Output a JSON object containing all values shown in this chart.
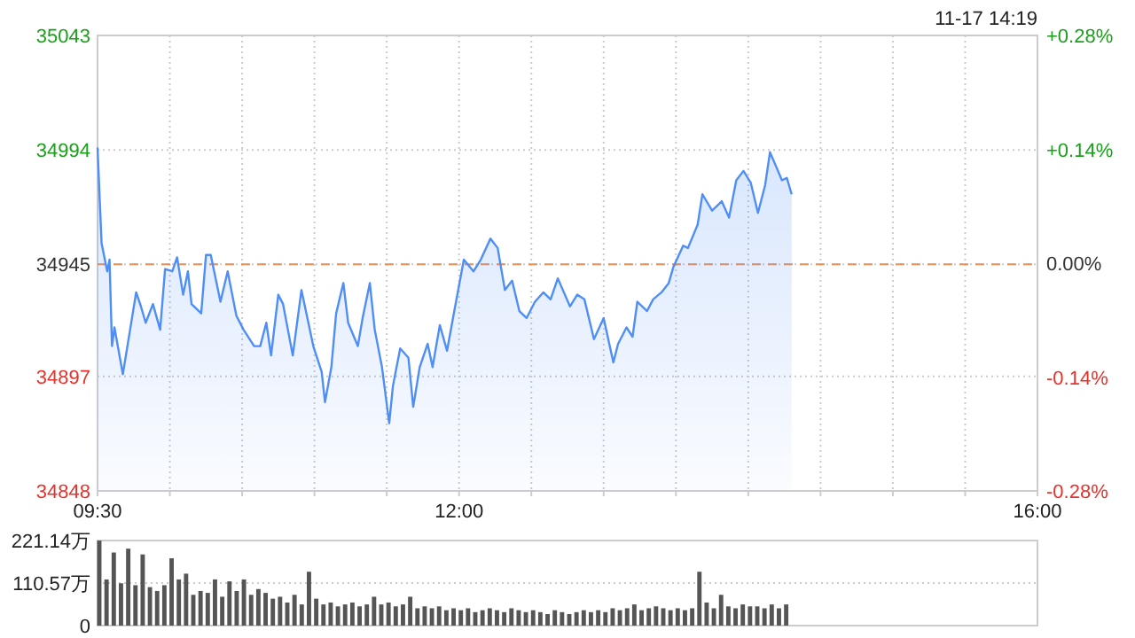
{
  "chart_data": [
    {
      "type": "area",
      "annotations": [
        "11-17 14:19"
      ],
      "x": [
        9.5,
        9.528,
        9.567,
        9.583,
        9.6,
        9.617,
        9.675,
        9.725,
        9.767,
        9.8,
        9.833,
        9.883,
        9.933,
        9.967,
        10.017,
        10.05,
        10.092,
        10.125,
        10.15,
        10.217,
        10.25,
        10.283,
        10.35,
        10.4,
        10.46,
        10.51,
        10.583,
        10.625,
        10.667,
        10.7,
        10.75,
        10.783,
        10.85,
        10.91,
        10.992,
        11.05,
        11.073,
        11.117,
        11.15,
        11.2,
        11.233,
        11.3,
        11.333,
        11.383,
        11.417,
        11.467,
        11.517,
        11.543,
        11.593,
        11.65,
        11.683,
        11.728,
        11.783,
        11.817,
        11.867,
        11.917,
        11.967,
        12.033,
        12.1,
        12.15,
        12.217,
        12.267,
        12.317,
        12.367,
        12.417,
        12.467,
        12.525,
        12.583,
        12.633,
        12.683,
        12.767,
        12.817,
        12.867,
        12.933,
        13,
        13.067,
        13.1,
        13.158,
        13.2,
        13.233,
        13.3,
        13.342,
        13.4,
        13.45,
        13.483,
        13.55,
        13.583,
        13.65,
        13.683,
        13.75,
        13.817,
        13.867,
        13.917,
        13.967,
        14.017,
        14.067,
        14.117,
        14.15,
        14.192,
        14.233,
        14.267,
        14.3
      ],
      "series": [
        {
          "color": "#4f8ef7",
          "values": [
            34995,
            34954,
            34942,
            34947,
            34910,
            34918,
            34898,
            34917,
            34933,
            34927,
            34920,
            34928,
            34917,
            34943,
            34942,
            34948,
            34932,
            34942,
            34928,
            34924,
            34949,
            34949,
            34929,
            34942,
            34923,
            34917,
            34910,
            34910,
            34920,
            34906,
            34932,
            34928,
            34906,
            34934,
            34910,
            34899,
            34886,
            34901,
            34924,
            34937,
            34920,
            34910,
            34922,
            34937,
            34917,
            34901,
            34877,
            34893,
            34909,
            34905,
            34884,
            34901,
            34911,
            34901,
            34919,
            34908,
            34925,
            34947,
            34942,
            34947,
            34956,
            34952,
            34934,
            34938,
            34925,
            34922,
            34929,
            34933,
            34930,
            34939,
            34927,
            34932,
            34930,
            34913,
            34922,
            34903,
            34911,
            34918,
            34914,
            34929,
            34925,
            34930,
            34933,
            34937,
            34944,
            34953,
            34952,
            34962,
            34975,
            34968,
            34972,
            34965,
            34981,
            34985,
            34980,
            34967,
            34979,
            34993,
            34987,
            34981,
            34982,
            34975
          ]
        }
      ],
      "xlim": [
        9.5,
        16
      ],
      "xticks": [
        {
          "value": 9.5,
          "label": "09:30"
        },
        {
          "value": 10,
          "label": null
        },
        {
          "value": 10.5,
          "label": null
        },
        {
          "value": 11,
          "label": null
        },
        {
          "value": 11.5,
          "label": null
        },
        {
          "value": 12,
          "label": "12:00"
        },
        {
          "value": 12.5,
          "label": null
        },
        {
          "value": 13,
          "label": null
        },
        {
          "value": 13.5,
          "label": null
        },
        {
          "value": 14,
          "label": null
        },
        {
          "value": 14.5,
          "label": null
        },
        {
          "value": 15,
          "label": null
        },
        {
          "value": 15.5,
          "label": null
        },
        {
          "value": 16,
          "label": "16:00"
        }
      ],
      "ylim": [
        34848,
        35043
      ],
      "yticks": [
        34848,
        34897,
        34945,
        34994,
        35043
      ],
      "y2lim": [
        -0.28,
        0.28
      ],
      "y2ticks": [
        {
          "value": -0.28,
          "label": "-0.28%"
        },
        {
          "value": -0.14,
          "label": "-0.14%"
        },
        {
          "value": 0,
          "label": "0.00%"
        },
        {
          "value": 0.14,
          "label": "+0.14%"
        },
        {
          "value": 0.28,
          "label": "+0.28%"
        }
      ],
      "ref_lines": [
        {
          "axis": "y",
          "value": 34945,
          "color": "#e8915a",
          "line_style": "dashed"
        }
      ],
      "grid": true
    },
    {
      "type": "bar",
      "color": "#555555",
      "x": [
        9.5,
        9.55,
        9.6,
        9.65,
        9.7,
        9.75,
        9.8,
        9.85,
        9.9,
        9.95,
        10,
        10.05,
        10.1,
        10.15,
        10.2,
        10.25,
        10.3,
        10.35,
        10.4,
        10.45,
        10.5,
        10.55,
        10.6,
        10.65,
        10.7,
        10.75,
        10.8,
        10.85,
        10.9,
        10.95,
        11,
        11.05,
        11.1,
        11.15,
        11.2,
        11.25,
        11.3,
        11.35,
        11.4,
        11.45,
        11.5,
        11.55,
        11.6,
        11.65,
        11.7,
        11.75,
        11.8,
        11.85,
        11.9,
        11.95,
        12,
        12.05,
        12.1,
        12.15,
        12.2,
        12.25,
        12.3,
        12.35,
        12.4,
        12.45,
        12.5,
        12.55,
        12.6,
        12.65,
        12.7,
        12.75,
        12.8,
        12.85,
        12.9,
        12.95,
        13,
        13.05,
        13.1,
        13.15,
        13.2,
        13.25,
        13.3,
        13.35,
        13.4,
        13.45,
        13.5,
        13.55,
        13.6,
        13.65,
        13.7,
        13.75,
        13.8,
        13.85,
        13.9,
        13.95,
        14,
        14.05,
        14.1,
        14.15,
        14.2,
        14.25
      ],
      "values": [
        221,
        120,
        190,
        110,
        200,
        105,
        185,
        100,
        90,
        105,
        175,
        120,
        135,
        80,
        90,
        85,
        120,
        75,
        115,
        90,
        120,
        80,
        95,
        85,
        70,
        75,
        60,
        80,
        55,
        140,
        70,
        55,
        60,
        50,
        55,
        60,
        50,
        55,
        75,
        55,
        60,
        50,
        55,
        75,
        45,
        50,
        45,
        50,
        40,
        45,
        40,
        45,
        35,
        40,
        45,
        40,
        35,
        45,
        40,
        35,
        40,
        35,
        30,
        40,
        35,
        30,
        35,
        40,
        35,
        40,
        35,
        45,
        40,
        45,
        55,
        40,
        45,
        50,
        45,
        40,
        45,
        40,
        45,
        140,
        60,
        45,
        80,
        50,
        45,
        55,
        50,
        50,
        45,
        55,
        45,
        55
      ],
      "xlim": [
        9.5,
        16
      ],
      "ylim": [
        0,
        221.14
      ],
      "yticks": [
        0,
        {
          "value": 110.57,
          "label": "110.57万"
        },
        {
          "value": 221.14,
          "label": "221.14万"
        }
      ],
      "tick_labels": "y",
      "grid": "y"
    }
  ]
}
